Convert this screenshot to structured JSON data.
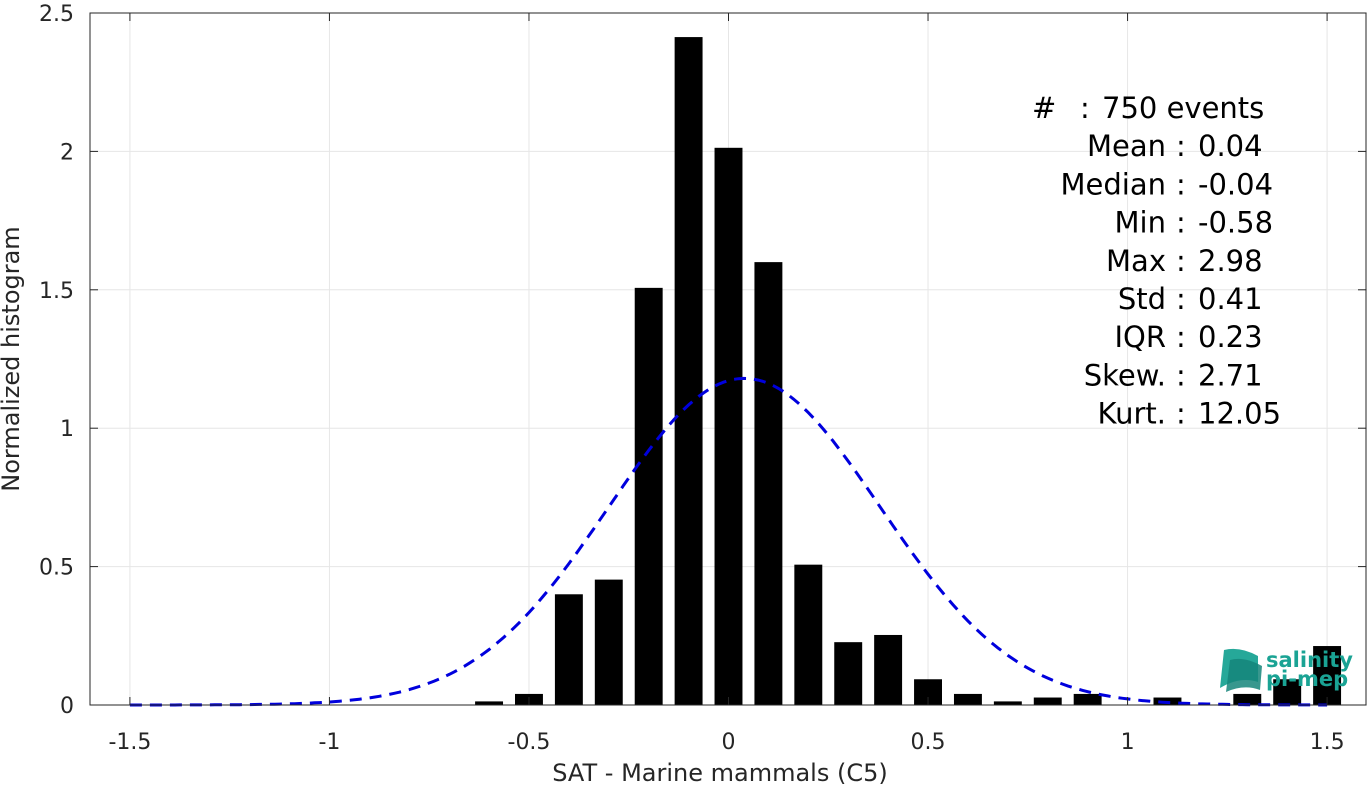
{
  "chart_data": {
    "type": "bar",
    "xlabel": "SAT - Marine mammals (C5)",
    "ylabel": "Normalized histogram",
    "xlim": [
      -1.6,
      1.6
    ],
    "ylim": [
      0,
      2.5
    ],
    "xticks": [
      "-1.5",
      "-1",
      "-0.5",
      "0",
      "0.5",
      "1",
      "1.5"
    ],
    "yticks": [
      "0",
      "0.5",
      "1",
      "1.5",
      "2",
      "2.5"
    ],
    "grid": true,
    "bar_color": "#000000",
    "bar_width": 0.07,
    "bars": [
      {
        "x": -0.6,
        "value": 0.013
      },
      {
        "x": -0.5,
        "value": 0.04
      },
      {
        "x": -0.4,
        "value": 0.4
      },
      {
        "x": -0.3,
        "value": 0.453
      },
      {
        "x": -0.2,
        "value": 1.507
      },
      {
        "x": -0.1,
        "value": 2.413
      },
      {
        "x": 0.0,
        "value": 2.013
      },
      {
        "x": 0.1,
        "value": 1.6
      },
      {
        "x": 0.2,
        "value": 0.507
      },
      {
        "x": 0.3,
        "value": 0.227
      },
      {
        "x": 0.4,
        "value": 0.253
      },
      {
        "x": 0.5,
        "value": 0.093
      },
      {
        "x": 0.6,
        "value": 0.04
      },
      {
        "x": 0.7,
        "value": 0.013
      },
      {
        "x": 0.8,
        "value": 0.027
      },
      {
        "x": 0.9,
        "value": 0.04
      },
      {
        "x": 1.1,
        "value": 0.027
      },
      {
        "x": 1.3,
        "value": 0.04
      },
      {
        "x": 1.4,
        "value": 0.093
      },
      {
        "x": 1.5,
        "value": 0.213
      }
    ],
    "fit_curve": {
      "type": "normal",
      "mean": 0.04,
      "std": 0.34,
      "peak": 1.18,
      "color": "#0000dd",
      "style": "dashed",
      "x_range": [
        -1.5,
        1.5
      ]
    },
    "annotation": [
      {
        "label": "#",
        "sep": ":",
        "value": "750 events"
      },
      {
        "label": "Mean",
        "sep": ":",
        "value": "0.04"
      },
      {
        "label": "Median",
        "sep": ":",
        "value": "-0.04"
      },
      {
        "label": "Min",
        "sep": ":",
        "value": "-0.58"
      },
      {
        "label": "Max",
        "sep": ":",
        "value": "2.98"
      },
      {
        "label": "Std",
        "sep": ":",
        "value": "0.41"
      },
      {
        "label": "IQR",
        "sep": ":",
        "value": "0.23"
      },
      {
        "label": "Skew.",
        "sep": ":",
        "value": "2.71"
      },
      {
        "label": "Kurt.",
        "sep": ":",
        "value": "12.05"
      }
    ]
  },
  "logo": {
    "line1": "salinity",
    "line2": "pi-mep",
    "color": "#1aa394"
  }
}
